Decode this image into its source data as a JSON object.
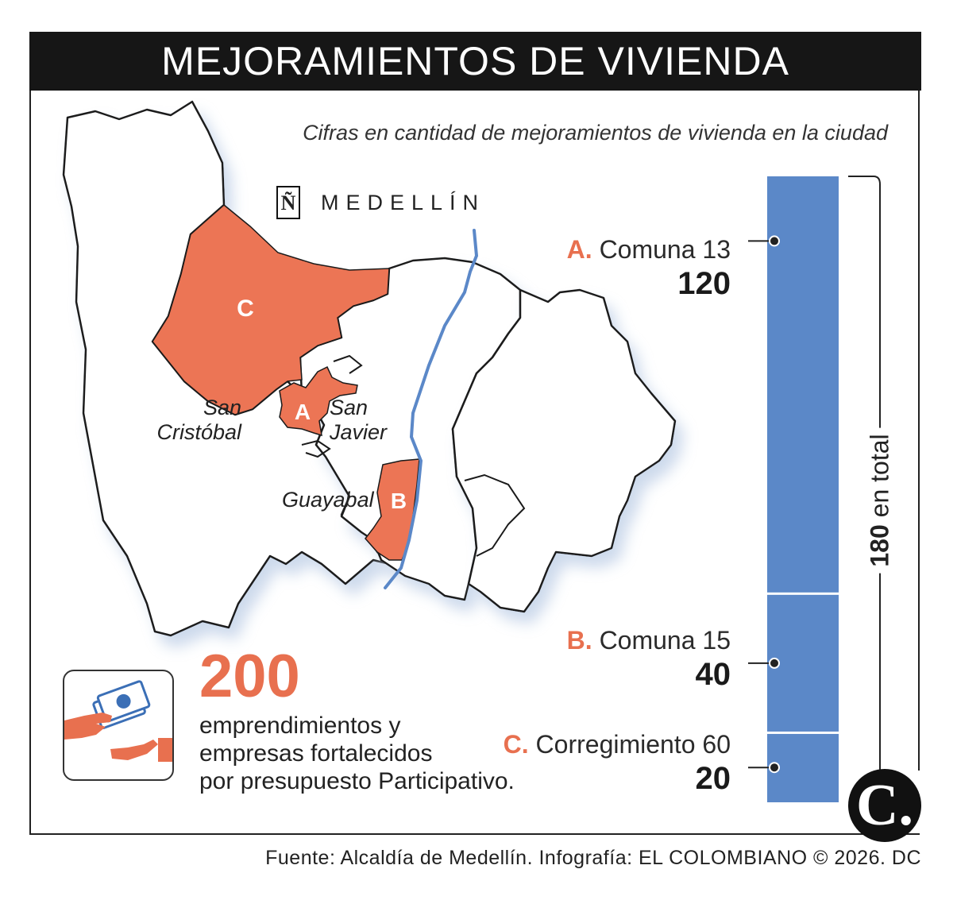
{
  "header": {
    "title": "MEJORAMIENTOS DE VIVIENDA"
  },
  "subtitle": "Cifras en cantidad de mejoramientos de vivienda en la ciudad",
  "brand": {
    "icon_letter": "Ñ",
    "name": "MEDELLÍN"
  },
  "map": {
    "zone_labels": {
      "a": "A",
      "b": "B",
      "c": "C"
    },
    "place_labels": {
      "san_cristobal": [
        "San",
        "Cristóbal"
      ],
      "san_javier": [
        "San",
        "Javier"
      ],
      "guayabal": "Guayabal"
    },
    "colors": {
      "highlight": "#EC7555",
      "river": "#5B88C8",
      "outline": "#1a1a1a"
    }
  },
  "chart_data": {
    "type": "bar",
    "stacked": true,
    "orientation": "vertical",
    "categories": [
      "A. Comuna 13",
      "B. Comuna 15",
      "C. Corregimiento 60"
    ],
    "letters": [
      "A.",
      "B.",
      "C."
    ],
    "names": [
      "Comuna 13",
      "Comuna 15",
      "Corregimiento 60"
    ],
    "values": [
      120,
      40,
      20
    ],
    "value_labels": [
      "120",
      "40",
      "20"
    ],
    "bar_color": "#5B88C8",
    "letter_color": "#E8704F",
    "total": 180,
    "total_label": {
      "number": "180",
      "text": "en total"
    }
  },
  "highlight": {
    "number": "200",
    "description": [
      "emprendimientos y",
      "empresas fortalecidos",
      "por presupuesto Participativo."
    ],
    "icon": "money-hand-icon"
  },
  "logo": {
    "letter": "C."
  },
  "source": "Fuente: Alcaldía de Medellín. Infografía: EL COLOMBIANO © 2026. DC"
}
